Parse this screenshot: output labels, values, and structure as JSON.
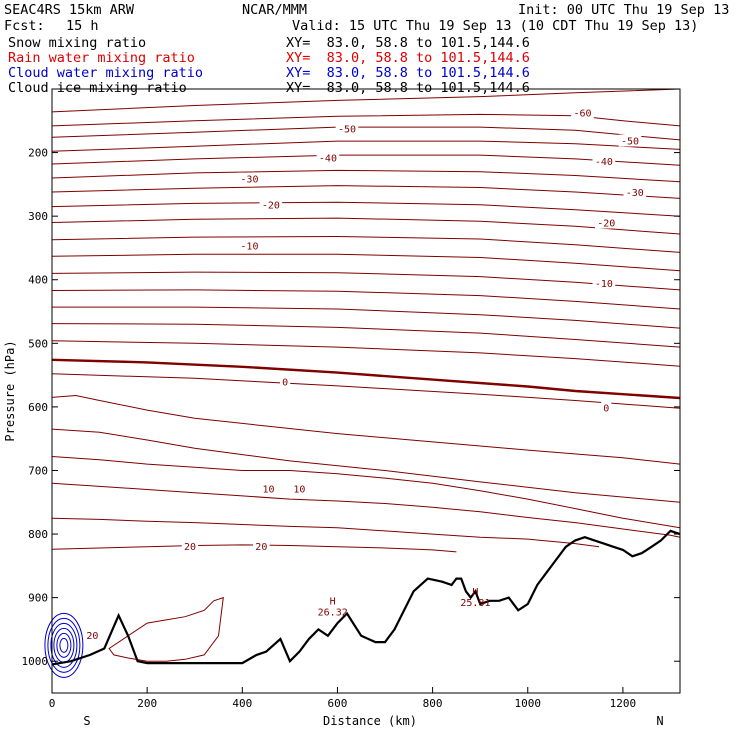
{
  "header": {
    "model": "SEAC4RS 15km ARW",
    "center": "NCAR/MMM",
    "init": "Init: 00 UTC Thu 19 Sep 13",
    "fcst_label": "Fcst:",
    "fcst_value": "15 h",
    "valid": "Valid: 15 UTC Thu 19 Sep 13 (10 CDT Thu 19 Sep 13)"
  },
  "legend": [
    {
      "label": "Snow mixing ratio",
      "xy": "XY=  83.0, 58.8 to 101.5,144.6",
      "color": "#000000"
    },
    {
      "label": "Rain water mixing ratio",
      "xy": "XY=  83.0, 58.8 to 101.5,144.6",
      "color": "#e00000"
    },
    {
      "label": "Cloud water mixing ratio",
      "xy": "XY=  83.0, 58.8 to 101.5,144.6",
      "color": "#0000cc"
    },
    {
      "label": "Cloud ice mixing ratio",
      "xy": "XY=  83.0, 58.8 to 101.5,144.6",
      "color": "#000000"
    }
  ],
  "chart_data": {
    "type": "line",
    "xlabel": "Distance (km)",
    "ylabel": "Pressure (hPa)",
    "xlim": [
      0,
      1320
    ],
    "ylim": [
      1050,
      100
    ],
    "xticks": [
      0,
      200,
      400,
      600,
      800,
      1000,
      1200
    ],
    "yticks": [
      200,
      300,
      400,
      500,
      600,
      700,
      800,
      900,
      1000
    ],
    "x_end_labels": {
      "left": "S",
      "right": "N"
    },
    "temperature_color": "#800000",
    "series": [
      {
        "x": [
          0,
          300,
          600,
          900,
          1100,
          1320
        ],
        "y": [
          136,
          126,
          118,
          112,
          106,
          100
        ]
      },
      {
        "x": [
          0,
          300,
          600,
          900,
          1100,
          1200,
          1320
        ],
        "y": [
          158,
          150,
          143,
          140,
          142,
          150,
          158
        ]
      },
      {
        "x": [
          0,
          300,
          600,
          900,
          1100,
          1200,
          1320
        ],
        "y": [
          176,
          168,
          160,
          160,
          165,
          172,
          180
        ]
      },
      {
        "x": [
          0,
          300,
          600,
          900,
          1100,
          1320
        ],
        "y": [
          198,
          190,
          182,
          182,
          186,
          195
        ]
      },
      {
        "x": [
          0,
          300,
          600,
          900,
          1100,
          1320
        ],
        "y": [
          218,
          210,
          204,
          204,
          210,
          220
        ]
      },
      {
        "x": [
          0,
          300,
          600,
          900,
          1100,
          1320
        ],
        "y": [
          240,
          232,
          228,
          230,
          236,
          246
        ]
      },
      {
        "x": [
          0,
          300,
          600,
          900,
          1100,
          1320
        ],
        "y": [
          262,
          256,
          252,
          255,
          262,
          272
        ]
      },
      {
        "x": [
          0,
          300,
          600,
          900,
          1100,
          1320
        ],
        "y": [
          285,
          280,
          278,
          282,
          290,
          300
        ]
      },
      {
        "x": [
          0,
          300,
          600,
          900,
          1100,
          1320
        ],
        "y": [
          310,
          305,
          303,
          308,
          316,
          328
        ]
      },
      {
        "x": [
          0,
          300,
          600,
          900,
          1100,
          1320
        ],
        "y": [
          337,
          333,
          332,
          336,
          345,
          357
        ]
      },
      {
        "x": [
          0,
          300,
          600,
          900,
          1100,
          1320
        ],
        "y": [
          363,
          360,
          360,
          365,
          374,
          386
        ]
      },
      {
        "x": [
          0,
          300,
          600,
          900,
          1100,
          1320
        ],
        "y": [
          390,
          388,
          389,
          395,
          404,
          416
        ]
      },
      {
        "x": [
          0,
          300,
          600,
          900,
          1100,
          1320
        ],
        "y": [
          417,
          416,
          418,
          425,
          434,
          446
        ]
      },
      {
        "x": [
          0,
          300,
          600,
          900,
          1100,
          1320
        ],
        "y": [
          443,
          443,
          446,
          455,
          464,
          476
        ]
      },
      {
        "x": [
          0,
          300,
          600,
          900,
          1100,
          1320
        ],
        "y": [
          469,
          470,
          475,
          484,
          494,
          506
        ]
      },
      {
        "x": [
          0,
          300,
          600,
          900,
          1100,
          1320
        ],
        "y": [
          496,
          500,
          506,
          515,
          524,
          536
        ]
      },
      {
        "x": [
          0,
          200,
          400,
          600,
          800,
          1000,
          1100,
          1200,
          1320
        ],
        "y": [
          526,
          530,
          537,
          546,
          557,
          568,
          575,
          580,
          586
        ]
      },
      {
        "x": [
          0,
          300,
          600,
          900,
          1100,
          1320
        ],
        "y": [
          548,
          555,
          567,
          580,
          590,
          602
        ]
      },
      {
        "x": [
          0,
          50,
          100,
          200,
          300,
          450,
          600,
          800,
          1000,
          1200,
          1320
        ],
        "y": [
          585,
          582,
          590,
          605,
          618,
          630,
          642,
          655,
          668,
          680,
          690
        ]
      },
      {
        "x": [
          0,
          100,
          200,
          300,
          400,
          500,
          700,
          900,
          1100,
          1320
        ],
        "y": [
          635,
          640,
          652,
          665,
          675,
          685,
          700,
          718,
          735,
          750
        ]
      },
      {
        "x": [
          0,
          100,
          200,
          300,
          400,
          500,
          600,
          700,
          800,
          900,
          1000,
          1100,
          1200,
          1320
        ],
        "y": [
          678,
          683,
          690,
          695,
          700,
          700,
          705,
          712,
          720,
          732,
          745,
          760,
          775,
          790
        ]
      },
      {
        "x": [
          0,
          100,
          200,
          300,
          400,
          500,
          600,
          700,
          800,
          900,
          1000,
          1100,
          1200,
          1300,
          1320
        ],
        "y": [
          720,
          725,
          730,
          735,
          740,
          745,
          748,
          752,
          758,
          765,
          774,
          782,
          792,
          802,
          805
        ]
      },
      {
        "x": [
          0,
          100,
          200,
          300,
          400,
          500,
          600,
          700,
          800,
          900,
          1000,
          1100,
          1150
        ],
        "y": [
          775,
          777,
          780,
          782,
          785,
          788,
          790,
          795,
          800,
          805,
          808,
          815,
          820
        ]
      },
      {
        "x": [
          0,
          100,
          200,
          300,
          400,
          500,
          600,
          700,
          800,
          850
        ],
        "y": [
          824,
          822,
          820,
          818,
          817,
          818,
          820,
          822,
          825,
          828
        ]
      }
    ],
    "temperature_labels": [
      {
        "text": "-60",
        "x": 1115,
        "y": 137
      },
      {
        "text": "-50",
        "x": 620,
        "y": 162
      },
      {
        "text": "-50",
        "x": 1215,
        "y": 181
      },
      {
        "text": "-40",
        "x": 580,
        "y": 208
      },
      {
        "text": "-40",
        "x": 1160,
        "y": 213
      },
      {
        "text": "-30",
        "x": 415,
        "y": 241
      },
      {
        "text": "-30",
        "x": 1225,
        "y": 262
      },
      {
        "text": "-20",
        "x": 460,
        "y": 282
      },
      {
        "text": "-20",
        "x": 1165,
        "y": 310
      },
      {
        "text": "-10",
        "x": 415,
        "y": 346
      },
      {
        "text": "-10",
        "x": 1160,
        "y": 405
      },
      {
        "text": "0",
        "x": 490,
        "y": 560
      },
      {
        "text": "0",
        "x": 1165,
        "y": 601
      },
      {
        "text": "10",
        "x": 455,
        "y": 728
      },
      {
        "text": "10",
        "x": 520,
        "y": 728
      },
      {
        "text": "20",
        "x": 290,
        "y": 819
      },
      {
        "text": "20",
        "x": 440,
        "y": 819
      },
      {
        "text": "20",
        "x": 85,
        "y": 959
      }
    ],
    "freezing_level_index": 16,
    "terrain": {
      "color": "#000000",
      "x": [
        0,
        40,
        80,
        110,
        140,
        160,
        180,
        200,
        250,
        300,
        350,
        400,
        430,
        450,
        480,
        500,
        520,
        540,
        560,
        580,
        600,
        620,
        650,
        680,
        700,
        720,
        740,
        760,
        790,
        820,
        840,
        850,
        860,
        870,
        880,
        890,
        900,
        920,
        940,
        960,
        980,
        1000,
        1020,
        1040,
        1060,
        1080,
        1100,
        1120,
        1140,
        1160,
        1180,
        1200,
        1220,
        1240,
        1260,
        1280,
        1300,
        1320
      ],
      "y": [
        1005,
        1000,
        990,
        980,
        928,
        960,
        1000,
        1003,
        1003,
        1003,
        1003,
        1003,
        990,
        985,
        965,
        1000,
        985,
        965,
        950,
        960,
        940,
        925,
        960,
        970,
        970,
        950,
        920,
        890,
        870,
        875,
        880,
        870,
        870,
        890,
        900,
        890,
        910,
        905,
        905,
        900,
        920,
        910,
        880,
        860,
        840,
        820,
        810,
        805,
        810,
        815,
        820,
        825,
        835,
        830,
        820,
        810,
        795,
        800
      ]
    },
    "rain_region": {
      "x": [
        120,
        160,
        200,
        240,
        280,
        320,
        340,
        360,
        350,
        320,
        280,
        240,
        200,
        160,
        130,
        120
      ],
      "y": [
        980,
        960,
        940,
        935,
        930,
        920,
        905,
        900,
        960,
        990,
        997,
        1000,
        1000,
        995,
        990,
        980
      ]
    },
    "cloud_water": {
      "color": "#0000cc",
      "center_x": 25,
      "center_y": 975,
      "levels": 6
    },
    "highs": [
      {
        "label": "H",
        "value": "26.32",
        "x": 590,
        "y": 920
      },
      {
        "label": "H",
        "value": "25.81",
        "x": 890,
        "y": 905
      }
    ]
  }
}
